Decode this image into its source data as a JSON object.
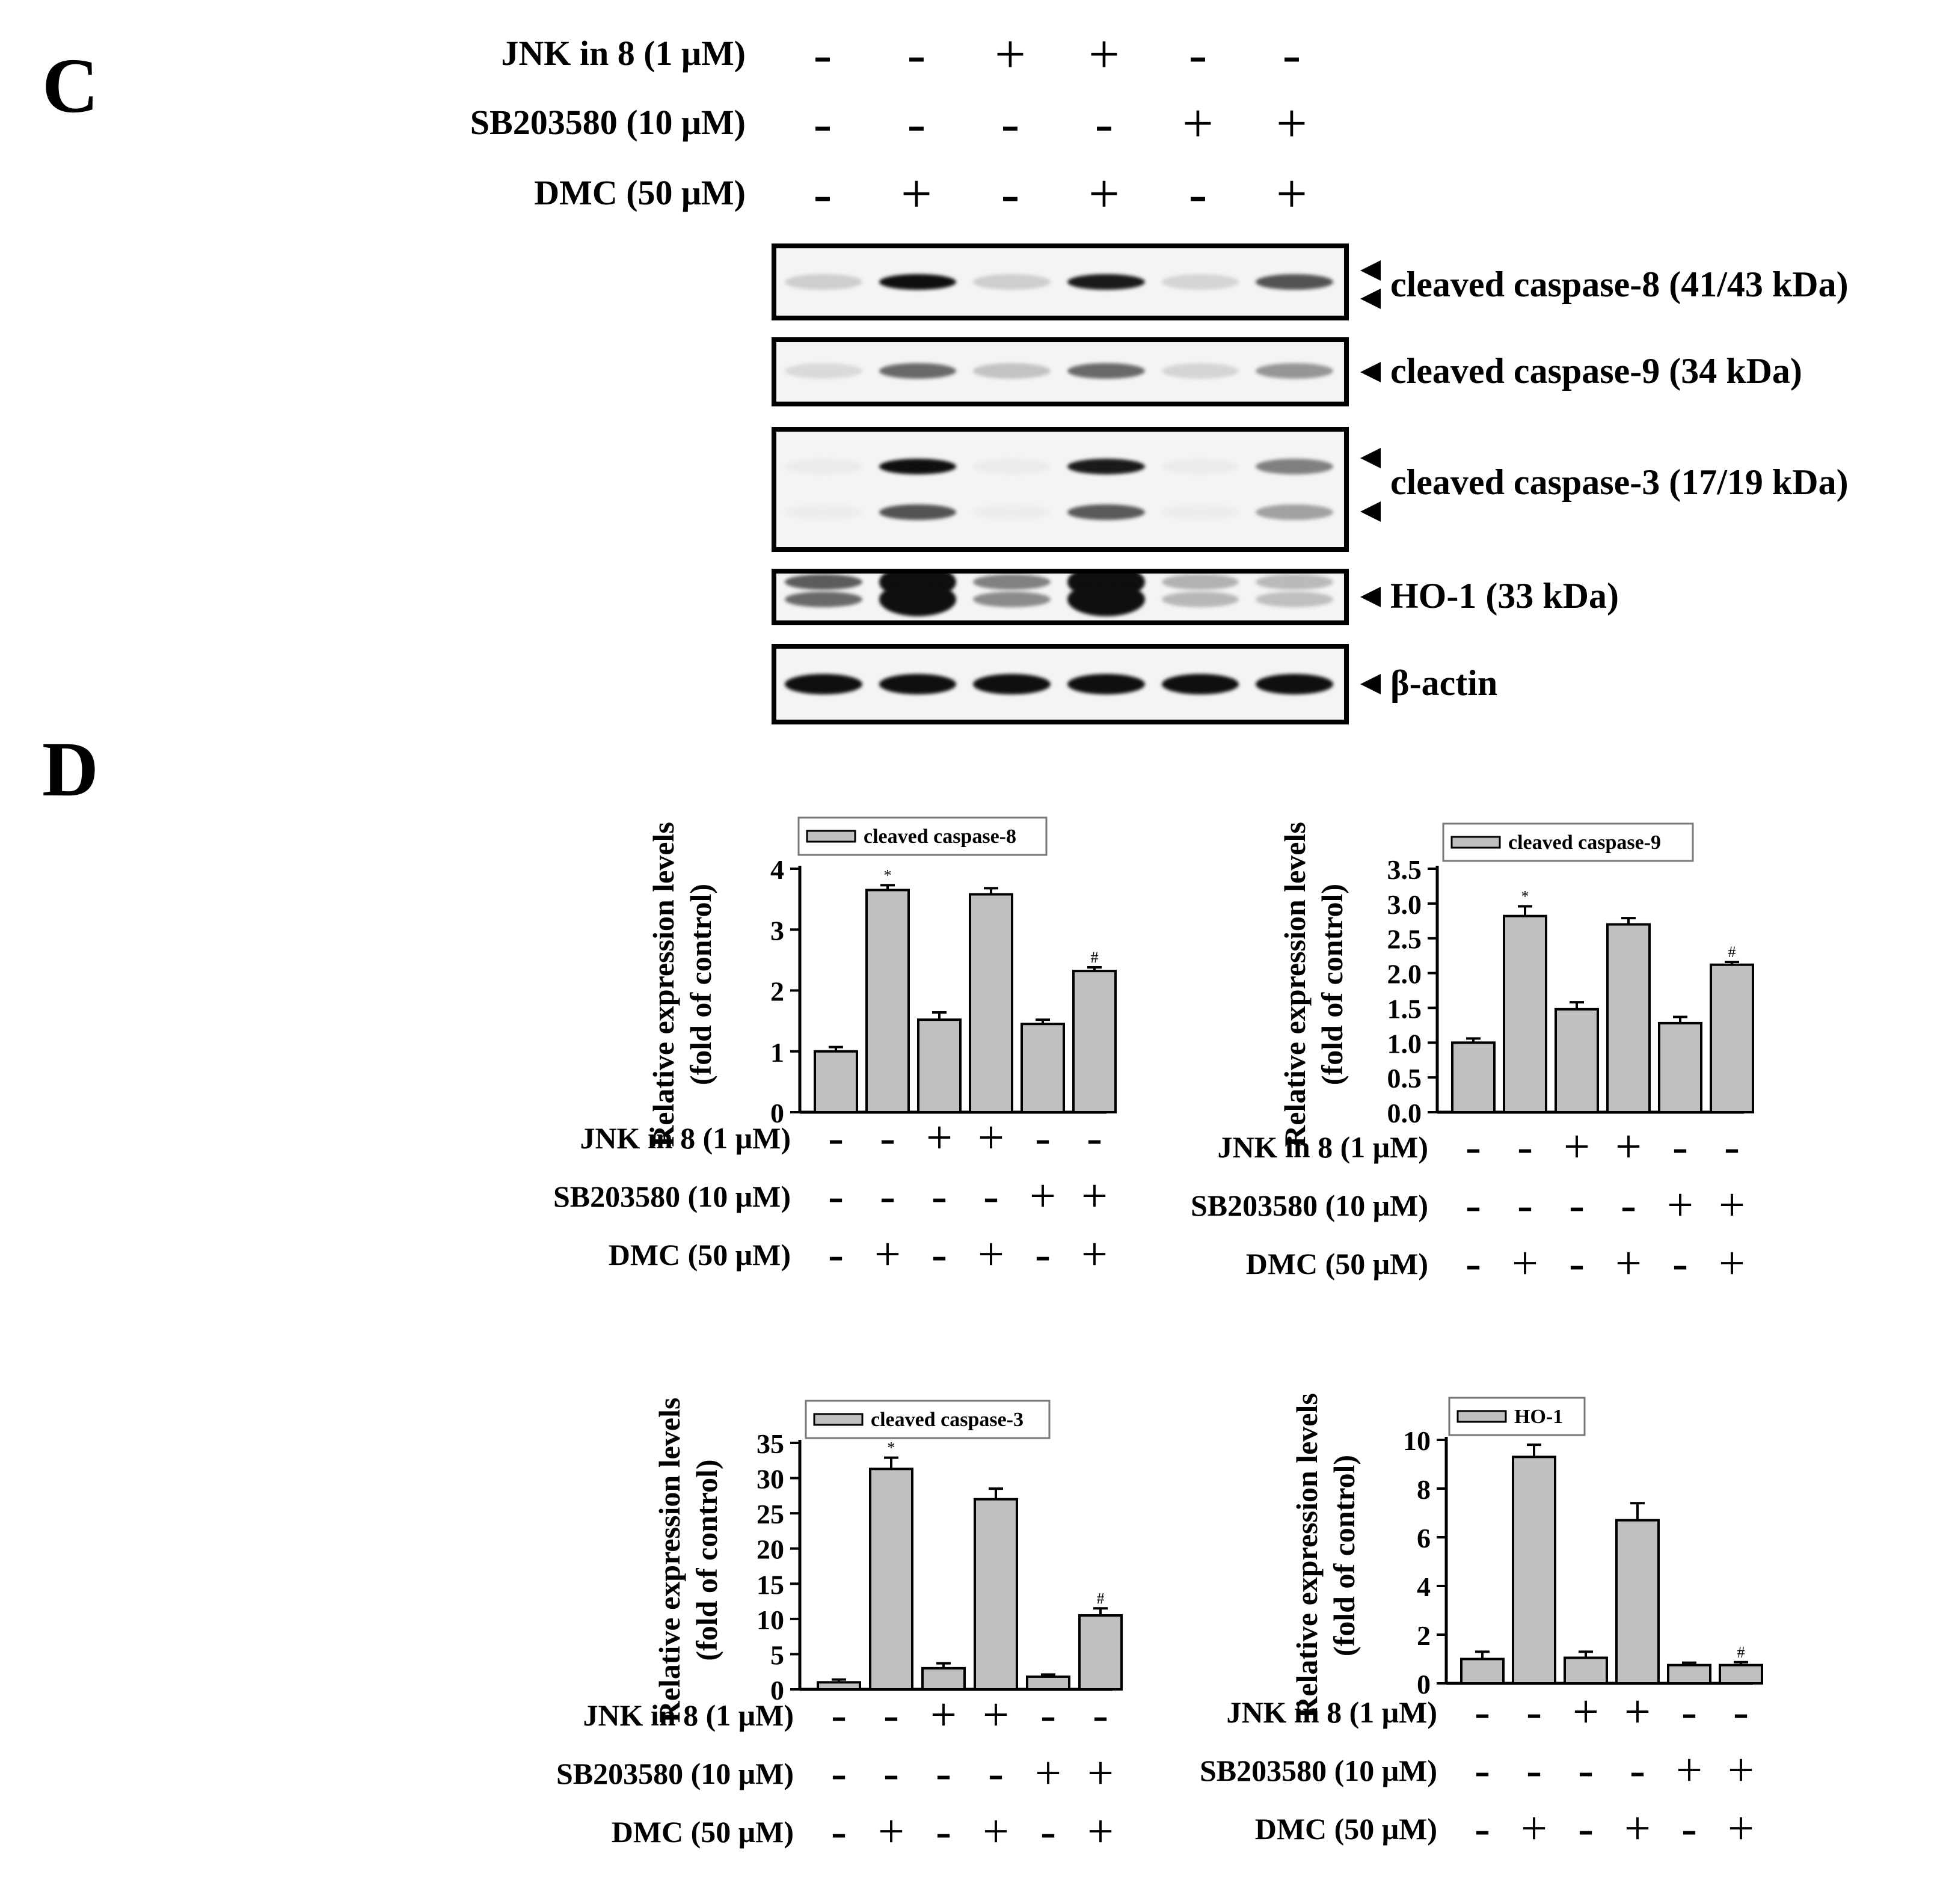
{
  "panel_c_letter": "C",
  "panel_d_letter": "D",
  "conditions": {
    "labels": [
      "JNK in 8 (1 μM)",
      "SB203580 (10 μM)",
      "DMC (50 μM)"
    ],
    "rows": [
      [
        "-",
        "-",
        "+",
        "+",
        "-",
        "-"
      ],
      [
        "-",
        "-",
        "-",
        "-",
        "+",
        "+"
      ],
      [
        "-",
        "+",
        "-",
        "+",
        "-",
        "+"
      ]
    ]
  },
  "blots": [
    {
      "name": "cleaved-caspase-8-blot",
      "label": "cleaved caspase-8 (41/43 kDa)",
      "intensity": [
        0.15,
        1.0,
        0.15,
        0.95,
        0.12,
        0.7
      ]
    },
    {
      "name": "cleaved-caspase-9-blot",
      "label": "cleaved caspase-9 (34 kDa)",
      "intensity": [
        0.1,
        0.6,
        0.2,
        0.6,
        0.12,
        0.4
      ]
    },
    {
      "name": "cleaved-caspase-3-blot",
      "label": "cleaved caspase-3 (17/19 kDa)",
      "intensity": [
        0.02,
        1.0,
        0.02,
        0.95,
        0.02,
        0.5
      ]
    },
    {
      "name": "ho-1-blot",
      "label": "HO-1 (33 kDa)",
      "intensity": [
        0.6,
        1.0,
        0.45,
        1.0,
        0.25,
        0.22
      ]
    },
    {
      "name": "beta-actin-blot",
      "label": "β-actin",
      "intensity": [
        1.0,
        1.0,
        1.0,
        1.0,
        1.0,
        1.0
      ]
    }
  ],
  "chart_data": [
    {
      "type": "bar",
      "legend": "cleaved caspase-8",
      "ylabel": "Relative expression levels (fold of control)",
      "ylim": [
        0,
        4
      ],
      "yticks": [
        "0",
        "1",
        "2",
        "3",
        "4"
      ],
      "values": [
        1.0,
        3.65,
        1.52,
        3.58,
        1.45,
        2.32
      ],
      "errors": [
        0.07,
        0.08,
        0.12,
        0.1,
        0.07,
        0.06
      ],
      "annotations": [
        "",
        "*",
        "",
        "",
        "",
        "#"
      ],
      "bar_color": "#c0c0c0"
    },
    {
      "type": "bar",
      "legend": "cleaved caspase-9",
      "ylabel": "Relative expression levels (fold of control)",
      "ylim": [
        0,
        3.5
      ],
      "yticks": [
        "0.0",
        "0.5",
        "1.0",
        "1.5",
        "2.0",
        "2.5",
        "3.0",
        "3.5"
      ],
      "values": [
        1.0,
        2.82,
        1.48,
        2.7,
        1.28,
        2.12
      ],
      "errors": [
        0.06,
        0.14,
        0.1,
        0.09,
        0.09,
        0.04
      ],
      "annotations": [
        "",
        "*",
        "",
        "",
        "",
        "#"
      ],
      "bar_color": "#c0c0c0"
    },
    {
      "type": "bar",
      "legend": "cleaved caspase-3",
      "ylabel": "Relative expression levels (fold of control)",
      "ylim": [
        0,
        35
      ],
      "yticks": [
        "0",
        "5",
        "10",
        "15",
        "20",
        "25",
        "30",
        "35"
      ],
      "values": [
        1.0,
        31.3,
        3.0,
        27.0,
        1.8,
        10.5
      ],
      "errors": [
        0.4,
        1.6,
        0.7,
        1.5,
        0.3,
        1.0
      ],
      "annotations": [
        "",
        "*",
        "",
        "",
        "",
        "#"
      ],
      "bar_color": "#c0c0c0"
    },
    {
      "type": "bar",
      "legend": "HO-1",
      "ylabel": "Relative expression levels (fold of control)",
      "ylim": [
        0,
        10
      ],
      "yticks": [
        "0",
        "2",
        "4",
        "6",
        "8",
        "10"
      ],
      "values": [
        1.0,
        9.3,
        1.05,
        6.7,
        0.75,
        0.75
      ],
      "errors": [
        0.3,
        0.5,
        0.25,
        0.7,
        0.1,
        0.12
      ],
      "annotations": [
        "",
        "*",
        "",
        "",
        "",
        "#"
      ],
      "bar_color": "#c0c0c0"
    }
  ]
}
